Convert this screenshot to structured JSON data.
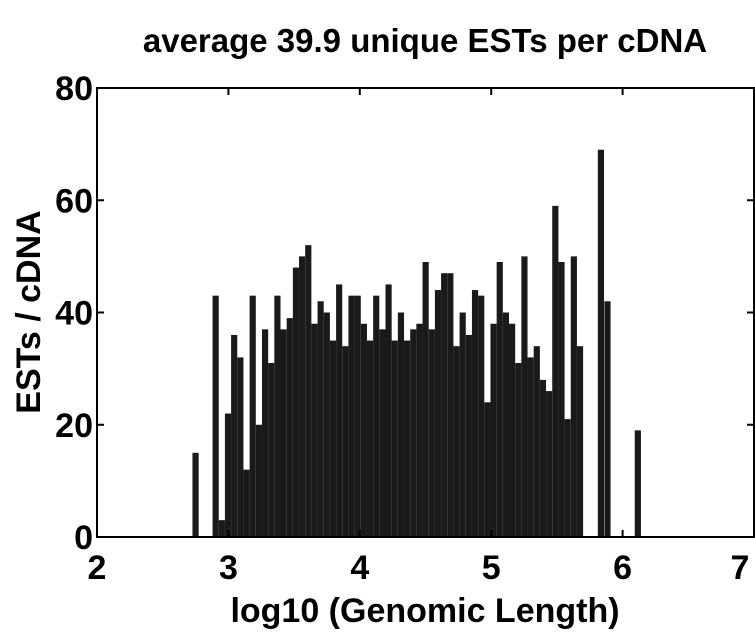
{
  "chart_data": {
    "type": "bar",
    "title": "average 39.9 unique ESTs per cDNA",
    "xlabel": "log10 (Genomic Length)",
    "ylabel": "ESTs / cDNA",
    "x": [
      2.75,
      2.903,
      2.95,
      2.997,
      3.044,
      3.091,
      3.138,
      3.185,
      3.232,
      3.279,
      3.326,
      3.373,
      3.42,
      3.467,
      3.514,
      3.561,
      3.608,
      3.655,
      3.702,
      3.749,
      3.796,
      3.843,
      3.89,
      3.937,
      3.984,
      4.031,
      4.078,
      4.125,
      4.172,
      4.219,
      4.266,
      4.313,
      4.36,
      4.407,
      4.454,
      4.501,
      4.548,
      4.595,
      4.642,
      4.689,
      4.736,
      4.783,
      4.83,
      4.877,
      4.924,
      4.971,
      5.018,
      5.065,
      5.112,
      5.159,
      5.206,
      5.253,
      5.3,
      5.347,
      5.394,
      5.441,
      5.488,
      5.535,
      5.582,
      5.629,
      5.676,
      5.835,
      5.885,
      6.116
    ],
    "values": [
      15,
      43,
      3,
      22,
      36,
      32,
      12,
      43,
      20,
      37,
      31,
      43,
      37,
      39,
      48,
      50,
      52,
      38,
      42,
      40,
      35,
      45,
      34,
      43,
      43,
      38,
      35,
      43,
      37,
      45,
      35,
      40,
      35,
      37,
      38,
      49,
      37,
      44,
      47,
      47,
      34,
      40,
      36,
      44,
      43,
      24,
      38,
      49,
      40,
      38,
      31,
      50,
      32,
      34,
      28,
      26,
      59,
      49,
      21,
      50,
      34,
      69,
      42,
      19
    ],
    "bar_width": 0.047,
    "color": "#1a1a1a",
    "xlim": [
      2,
      7
    ],
    "xticks": [
      2,
      3,
      4,
      5,
      6,
      7
    ],
    "ylim": [
      0,
      80
    ],
    "yticks": [
      0,
      20,
      40,
      60,
      80
    ]
  }
}
